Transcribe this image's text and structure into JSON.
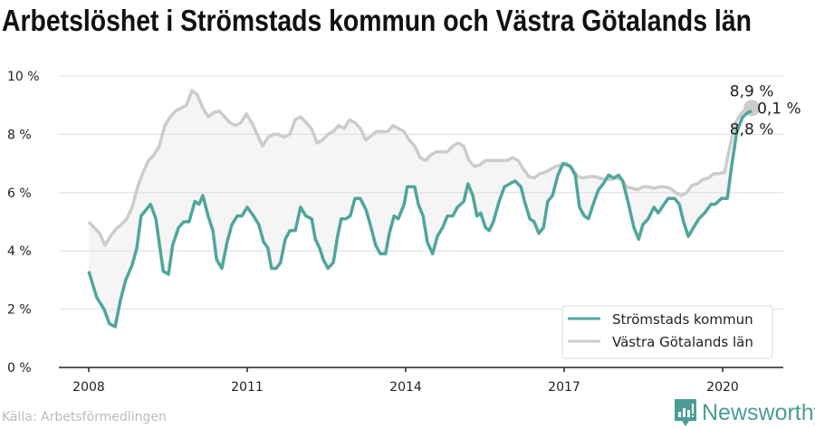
{
  "title": "Arbetslöshet i Strömstads kommun och Västra Götalands län",
  "source": "Källa: Arbetsförmedlingen",
  "brand": "Newsworthy",
  "colors": {
    "primary": "#4fa69c",
    "secondary": "#cccccc",
    "fill": "#f5f5f5",
    "brand": "#4a9d95"
  },
  "chart_data": {
    "type": "line",
    "xlabel": "",
    "ylabel": "",
    "xlim": [
      2007.4,
      2021.1
    ],
    "ylim": [
      0,
      10
    ],
    "grid": true,
    "legend_position": "bottom-right",
    "x_ticks": [
      {
        "v": 2008,
        "label": "2008"
      },
      {
        "v": 2011,
        "label": "2011"
      },
      {
        "v": 2014,
        "label": "2014"
      },
      {
        "v": 2017,
        "label": "2017"
      },
      {
        "v": 2020,
        "label": "2020"
      }
    ],
    "y_ticks": [
      {
        "v": 0,
        "label": "0 %"
      },
      {
        "v": 2,
        "label": "2 %"
      },
      {
        "v": 4,
        "label": "4 %"
      },
      {
        "v": 6,
        "label": "6 %"
      },
      {
        "v": 8,
        "label": "8 %"
      },
      {
        "v": 10,
        "label": "10 %"
      }
    ],
    "annotations": {
      "secondary_end": "8,9 %",
      "primary_end": "8,8 %",
      "difference": "0,1 %"
    },
    "series": [
      {
        "name": "Strömstads kommun",
        "points": [
          [
            2008.0,
            3.3
          ],
          [
            2008.15,
            2.4
          ],
          [
            2008.29,
            2.0
          ],
          [
            2008.39,
            1.5
          ],
          [
            2008.5,
            1.4
          ],
          [
            2008.6,
            2.3
          ],
          [
            2008.7,
            3.0
          ],
          [
            2008.82,
            3.5
          ],
          [
            2008.91,
            4.1
          ],
          [
            2008.99,
            5.2
          ],
          [
            2009.17,
            5.6
          ],
          [
            2009.27,
            5.1
          ],
          [
            2009.41,
            3.3
          ],
          [
            2009.51,
            3.2
          ],
          [
            2009.59,
            4.2
          ],
          [
            2009.7,
            4.8
          ],
          [
            2009.8,
            5.0
          ],
          [
            2009.9,
            5.0
          ],
          [
            2010.01,
            5.7
          ],
          [
            2010.09,
            5.6
          ],
          [
            2010.16,
            5.9
          ],
          [
            2010.26,
            5.2
          ],
          [
            2010.35,
            4.7
          ],
          [
            2010.42,
            3.7
          ],
          [
            2010.52,
            3.4
          ],
          [
            2010.62,
            4.3
          ],
          [
            2010.71,
            4.9
          ],
          [
            2010.81,
            5.2
          ],
          [
            2010.9,
            5.2
          ],
          [
            2011.0,
            5.5
          ],
          [
            2011.12,
            5.2
          ],
          [
            2011.22,
            4.9
          ],
          [
            2011.31,
            4.3
          ],
          [
            2011.39,
            4.1
          ],
          [
            2011.46,
            3.4
          ],
          [
            2011.55,
            3.4
          ],
          [
            2011.63,
            3.6
          ],
          [
            2011.72,
            4.4
          ],
          [
            2011.81,
            4.7
          ],
          [
            2011.91,
            4.7
          ],
          [
            2012.01,
            5.5
          ],
          [
            2012.11,
            5.2
          ],
          [
            2012.22,
            5.1
          ],
          [
            2012.29,
            4.4
          ],
          [
            2012.37,
            4.1
          ],
          [
            2012.44,
            3.7
          ],
          [
            2012.53,
            3.4
          ],
          [
            2012.63,
            3.6
          ],
          [
            2012.71,
            4.5
          ],
          [
            2012.78,
            5.1
          ],
          [
            2012.87,
            5.1
          ],
          [
            2012.95,
            5.2
          ],
          [
            2013.04,
            5.8
          ],
          [
            2013.14,
            5.8
          ],
          [
            2013.25,
            5.4
          ],
          [
            2013.33,
            4.9
          ],
          [
            2013.43,
            4.2
          ],
          [
            2013.52,
            3.9
          ],
          [
            2013.62,
            3.9
          ],
          [
            2013.69,
            4.6
          ],
          [
            2013.78,
            5.2
          ],
          [
            2013.86,
            5.1
          ],
          [
            2013.97,
            5.6
          ],
          [
            2014.03,
            6.2
          ],
          [
            2014.17,
            6.2
          ],
          [
            2014.24,
            5.6
          ],
          [
            2014.33,
            5.2
          ],
          [
            2014.41,
            4.3
          ],
          [
            2014.51,
            3.9
          ],
          [
            2014.6,
            4.5
          ],
          [
            2014.7,
            4.8
          ],
          [
            2014.79,
            5.2
          ],
          [
            2014.89,
            5.2
          ],
          [
            2014.98,
            5.5
          ],
          [
            2015.1,
            5.7
          ],
          [
            2015.18,
            6.3
          ],
          [
            2015.27,
            5.9
          ],
          [
            2015.35,
            5.2
          ],
          [
            2015.42,
            5.3
          ],
          [
            2015.51,
            4.8
          ],
          [
            2015.58,
            4.7
          ],
          [
            2015.66,
            5.0
          ],
          [
            2015.77,
            5.7
          ],
          [
            2015.87,
            6.2
          ],
          [
            2015.97,
            6.3
          ],
          [
            2016.07,
            6.4
          ],
          [
            2016.18,
            6.2
          ],
          [
            2016.25,
            5.7
          ],
          [
            2016.35,
            5.1
          ],
          [
            2016.43,
            5.0
          ],
          [
            2016.52,
            4.6
          ],
          [
            2016.61,
            4.8
          ],
          [
            2016.69,
            5.7
          ],
          [
            2016.78,
            5.9
          ],
          [
            2016.88,
            6.6
          ],
          [
            2016.98,
            7.0
          ],
          [
            2017.12,
            6.9
          ],
          [
            2017.21,
            6.6
          ],
          [
            2017.29,
            5.5
          ],
          [
            2017.38,
            5.2
          ],
          [
            2017.46,
            5.1
          ],
          [
            2017.57,
            5.7
          ],
          [
            2017.65,
            6.1
          ],
          [
            2017.74,
            6.3
          ],
          [
            2017.84,
            6.6
          ],
          [
            2017.94,
            6.5
          ],
          [
            2018.03,
            6.6
          ],
          [
            2018.11,
            6.4
          ],
          [
            2018.22,
            5.6
          ],
          [
            2018.32,
            4.8
          ],
          [
            2018.41,
            4.4
          ],
          [
            2018.49,
            4.9
          ],
          [
            2018.59,
            5.1
          ],
          [
            2018.7,
            5.5
          ],
          [
            2018.78,
            5.3
          ],
          [
            2018.89,
            5.6
          ],
          [
            2018.97,
            5.8
          ],
          [
            2019.09,
            5.8
          ],
          [
            2019.18,
            5.6
          ],
          [
            2019.26,
            5.0
          ],
          [
            2019.35,
            4.5
          ],
          [
            2019.45,
            4.8
          ],
          [
            2019.55,
            5.1
          ],
          [
            2019.66,
            5.3
          ],
          [
            2019.78,
            5.6
          ],
          [
            2019.86,
            5.6
          ],
          [
            2019.98,
            5.8
          ],
          [
            2020.09,
            5.8
          ],
          [
            2020.17,
            6.9
          ],
          [
            2020.27,
            8.1
          ],
          [
            2020.38,
            8.6
          ],
          [
            2020.48,
            8.75
          ],
          [
            2020.55,
            8.8
          ]
        ]
      },
      {
        "name": "Västra Götalands län",
        "x_start": 2008.0,
        "x_end": 2020.55,
        "values": [
          5.0,
          4.8,
          4.6,
          4.2,
          4.5,
          4.75,
          4.9,
          5.1,
          5.5,
          6.2,
          6.7,
          7.1,
          7.3,
          7.6,
          8.3,
          8.6,
          8.8,
          8.9,
          9.0,
          9.5,
          9.35,
          8.9,
          8.6,
          8.75,
          8.8,
          8.6,
          8.4,
          8.3,
          8.4,
          8.7,
          8.4,
          8.0,
          7.6,
          7.9,
          8.0,
          8.0,
          7.9,
          8.0,
          8.5,
          8.6,
          8.4,
          8.2,
          7.7,
          7.8,
          8.0,
          8.1,
          8.3,
          8.2,
          8.5,
          8.4,
          8.2,
          7.8,
          7.95,
          8.1,
          8.1,
          8.1,
          8.3,
          8.2,
          8.1,
          7.8,
          7.6,
          7.2,
          7.1,
          7.3,
          7.4,
          7.4,
          7.4,
          7.6,
          7.7,
          7.6,
          7.1,
          6.9,
          6.95,
          7.1,
          7.1,
          7.1,
          7.1,
          7.1,
          7.2,
          7.1,
          6.8,
          6.55,
          6.5,
          6.65,
          6.7,
          6.8,
          6.9,
          6.95,
          7.0,
          6.8,
          6.55,
          6.5,
          6.55,
          6.55,
          6.5,
          6.45,
          6.45,
          6.5,
          6.45,
          6.2,
          6.15,
          6.1,
          6.2,
          6.2,
          6.15,
          6.2,
          6.2,
          6.15,
          6.0,
          5.9,
          6.0,
          6.25,
          6.3,
          6.45,
          6.5,
          6.65,
          6.65,
          6.7,
          7.6,
          8.4,
          8.7,
          8.9,
          8.9
        ]
      }
    ]
  }
}
